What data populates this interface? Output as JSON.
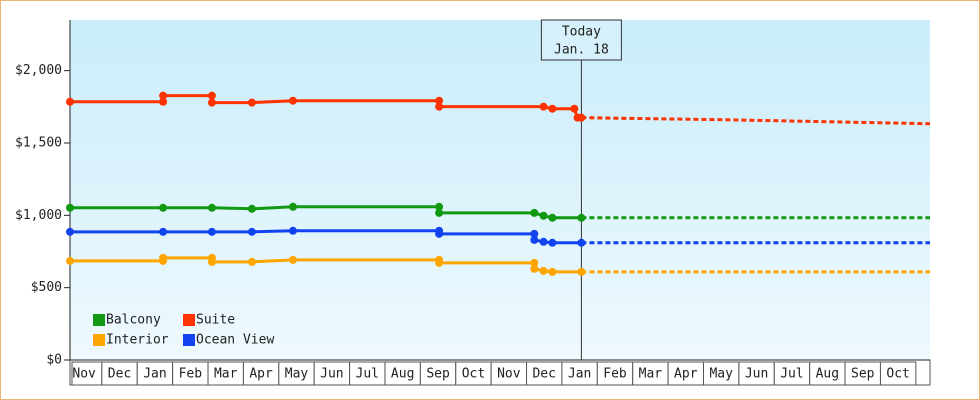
{
  "chart_data": {
    "type": "line",
    "xlim": [
      0.1,
      24.4
    ],
    "xticks": [
      {
        "value": 0.5,
        "label": "Nov"
      },
      {
        "value": 1.5,
        "label": "Dec"
      },
      {
        "value": 2.5,
        "label": "Jan"
      },
      {
        "value": 3.5,
        "label": "Feb"
      },
      {
        "value": 4.5,
        "label": "Mar"
      },
      {
        "value": 5.5,
        "label": "Apr"
      },
      {
        "value": 6.5,
        "label": "May"
      },
      {
        "value": 7.5,
        "label": "Jun"
      },
      {
        "value": 8.5,
        "label": "Jul"
      },
      {
        "value": 9.5,
        "label": "Aug"
      },
      {
        "value": 10.5,
        "label": "Sep"
      },
      {
        "value": 11.5,
        "label": "Oct"
      },
      {
        "value": 12.5,
        "label": "Nov"
      },
      {
        "value": 13.5,
        "label": "Dec"
      },
      {
        "value": 14.5,
        "label": "Jan"
      },
      {
        "value": 15.5,
        "label": "Feb"
      },
      {
        "value": 16.5,
        "label": "Mar"
      },
      {
        "value": 17.5,
        "label": "Apr"
      },
      {
        "value": 18.5,
        "label": "May"
      },
      {
        "value": 19.5,
        "label": "Jun"
      },
      {
        "value": 20.5,
        "label": "Jul"
      },
      {
        "value": 21.5,
        "label": "Aug"
      },
      {
        "value": 22.5,
        "label": "Sep"
      },
      {
        "value": 23.5,
        "label": "Oct"
      }
    ],
    "ylim": [
      0,
      2350
    ],
    "yticks": [
      {
        "value": 0,
        "label": "$0"
      },
      {
        "value": 500,
        "label": "$500"
      },
      {
        "value": 1000,
        "label": "$1,000"
      },
      {
        "value": 1500,
        "label": "$1,500"
      },
      {
        "value": 2000,
        "label": "$2,000"
      }
    ],
    "today": {
      "x": 14.55,
      "label": "Today",
      "date": "Jan. 18"
    },
    "series": [
      {
        "name": "Balcony",
        "color": "#119911",
        "x": [
          0.1,
          2.73,
          4.11,
          5.24,
          6.4,
          10.53,
          10.53,
          13.22,
          13.48,
          13.73,
          14.55
        ],
        "values": [
          1052,
          1052,
          1052,
          1045,
          1059,
          1059,
          1017,
          1017,
          997,
          983,
          983
        ],
        "forecast_x": [
          14.55,
          24.4
        ],
        "forecast_values": [
          983,
          983
        ]
      },
      {
        "name": "Suite",
        "color": "#ff3300",
        "x": [
          0.1,
          2.73,
          2.73,
          4.11,
          4.11,
          5.24,
          6.4,
          10.53,
          10.53,
          13.48,
          13.73,
          14.35,
          14.44,
          14.55
        ],
        "values": [
          1785,
          1785,
          1827,
          1827,
          1779,
          1779,
          1792,
          1792,
          1751,
          1751,
          1737,
          1737,
          1675,
          1675
        ],
        "forecast_x": [
          14.55,
          16.5,
          18.5,
          21.5,
          24.4
        ],
        "forecast_values": [
          1675,
          1668,
          1661,
          1647,
          1633
        ]
      },
      {
        "name": "Interior",
        "color": "#ffa500",
        "x": [
          0.1,
          2.73,
          2.73,
          4.11,
          4.11,
          5.24,
          6.4,
          10.53,
          10.53,
          13.22,
          13.22,
          13.48,
          13.73,
          14.55
        ],
        "values": [
          685,
          685,
          706,
          706,
          678,
          678,
          692,
          692,
          671,
          671,
          630,
          616,
          609,
          609
        ],
        "forecast_x": [
          14.55,
          24.4
        ],
        "forecast_values": [
          609,
          609
        ]
      },
      {
        "name": "Ocean View",
        "color": "#1144ee",
        "x": [
          0.1,
          2.73,
          4.11,
          5.24,
          6.4,
          10.53,
          10.53,
          13.22,
          13.22,
          13.48,
          13.73,
          14.55
        ],
        "values": [
          886,
          886,
          886,
          886,
          893,
          893,
          872,
          872,
          830,
          817,
          810,
          810
        ],
        "forecast_x": [
          14.55,
          24.4
        ],
        "forecast_values": [
          810,
          810
        ]
      }
    ]
  }
}
